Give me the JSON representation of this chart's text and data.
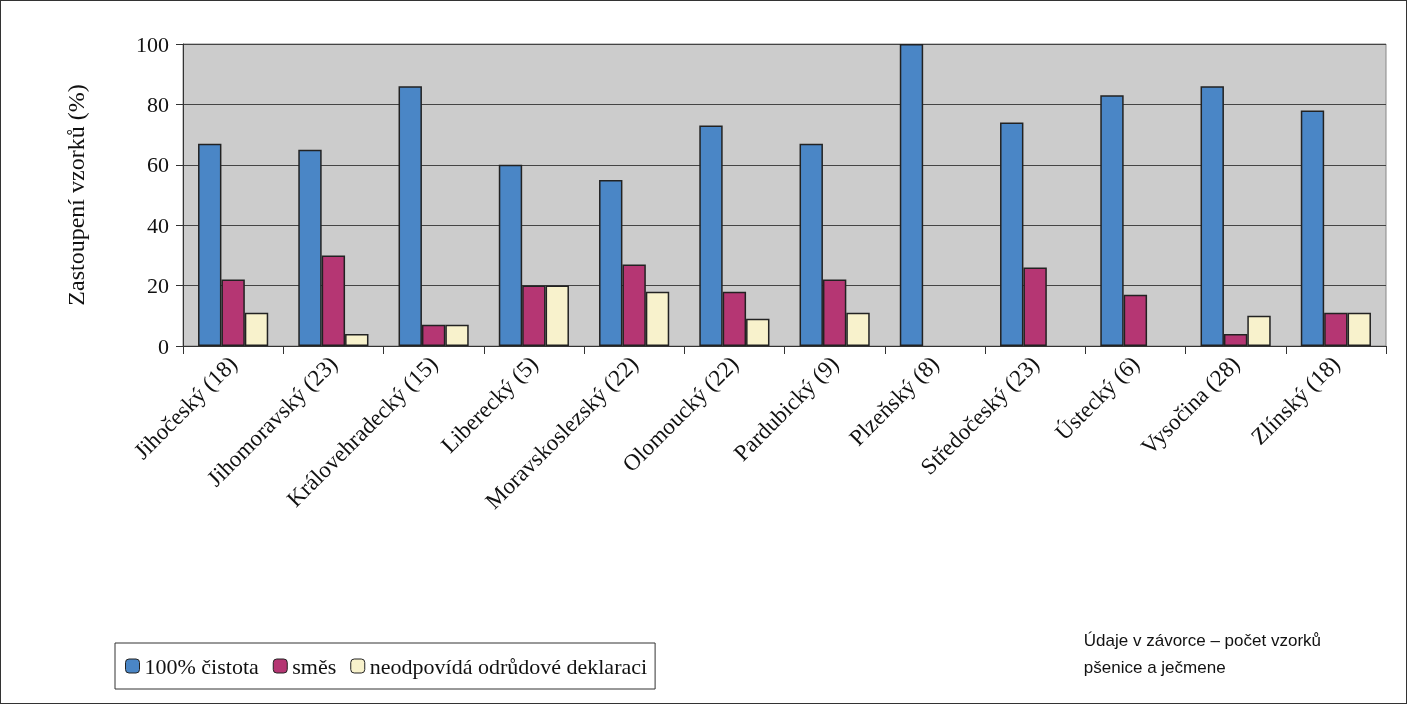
{
  "chart_data": {
    "type": "bar",
    "ylabel": "Zastoupení vzorků (%)",
    "categories": [
      "Jihočeský (18)",
      "Jihomoravský (23)",
      "Královehradecký (15)",
      "Liberecký (5)",
      "Moravskoslezský (22)",
      "Olomoucký (22)",
      "Pardubický (9)",
      "Plzeňský (8)",
      "Středočeský (23)",
      "Ústecký (6)",
      "Vysočina (28)",
      "Zlínský (18)"
    ],
    "series": [
      {
        "name": "100% čistota",
        "color": "#4a86c6",
        "values": [
          67,
          65,
          86,
          60,
          55,
          73,
          67,
          100,
          74,
          83,
          86,
          78
        ]
      },
      {
        "name": "směs",
        "color": "#b53673",
        "values": [
          22,
          30,
          7,
          20,
          27,
          18,
          22,
          null,
          26,
          17,
          4,
          11
        ]
      },
      {
        "name": "neodpovídá odrůdové deklaraci",
        "color": "#f8f2cc",
        "values": [
          11,
          4,
          7,
          20,
          18,
          9,
          11,
          null,
          null,
          null,
          10,
          11
        ]
      }
    ],
    "ylim": [
      0,
      100
    ],
    "yticks": [
      0,
      20,
      40,
      60,
      80,
      100
    ],
    "grid": "y",
    "legend": "bottom left",
    "annotations": [
      "Údaje v závorce – počet vzorků\npšenice a ječmene"
    ]
  }
}
